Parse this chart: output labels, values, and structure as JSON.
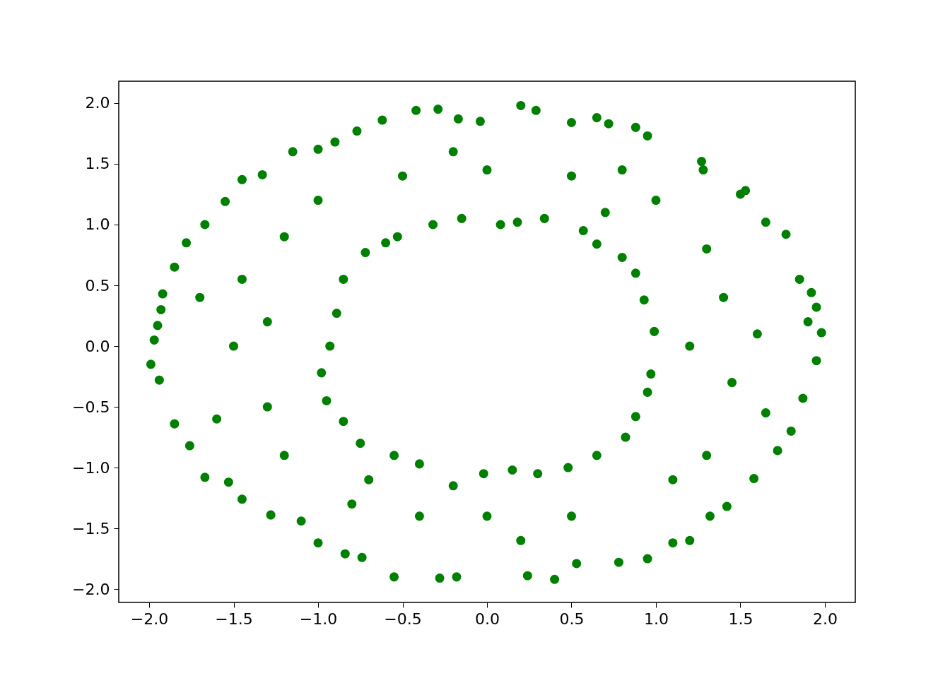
{
  "chart_data": {
    "type": "scatter",
    "x": [
      -1.99,
      -1.97,
      -1.95,
      -1.93,
      -1.92,
      -1.94,
      -1.85,
      -1.85,
      -1.78,
      -1.76,
      -1.67,
      -1.67,
      -1.55,
      -1.53,
      -1.45,
      -1.45,
      -1.33,
      -1.28,
      -1.15,
      -1.1,
      -1.0,
      -1.0,
      -0.9,
      -0.84,
      -0.77,
      -0.74,
      -0.62,
      -0.55,
      -0.42,
      -0.28,
      -0.29,
      -0.17,
      -0.18,
      -0.04,
      0.2,
      0.29,
      0.24,
      0.4,
      0.5,
      0.53,
      0.65,
      0.72,
      0.78,
      0.88,
      0.95,
      0.95,
      1.1,
      1.27,
      1.28,
      1.2,
      1.32,
      1.42,
      1.5,
      1.53,
      1.58,
      1.65,
      1.72,
      1.77,
      1.8,
      1.85,
      1.87,
      1.92,
      1.95,
      1.98,
      1.95,
      1.9,
      -0.98,
      -0.93,
      -0.89,
      -0.85,
      -0.72,
      -0.6,
      -0.53,
      -0.32,
      -0.15,
      0.08,
      0.18,
      0.34,
      0.57,
      0.65,
      0.8,
      0.88,
      0.93,
      0.99,
      0.97,
      0.95,
      0.88,
      0.82,
      0.65,
      0.48,
      0.3,
      0.15,
      -0.02,
      -0.2,
      -0.4,
      -0.55,
      -0.75,
      -0.85,
      -0.95,
      -1.5,
      -1.45,
      -1.3,
      -1.2,
      -1.0,
      -1.2,
      -0.5,
      -0.4,
      0.0,
      0.0,
      0.5,
      0.5,
      1.0,
      1.1,
      1.4,
      1.45,
      1.3,
      1.3,
      -1.6,
      -1.7,
      1.6,
      1.65,
      -0.8,
      0.8,
      -0.2,
      0.2,
      -1.3,
      1.2,
      0.7,
      -0.7
    ],
    "values": [
      -0.15,
      0.05,
      0.17,
      0.3,
      0.43,
      -0.28,
      0.65,
      -0.64,
      0.85,
      -0.82,
      1.0,
      -1.08,
      1.19,
      -1.12,
      1.37,
      -1.26,
      1.41,
      -1.39,
      1.6,
      -1.44,
      1.62,
      -1.62,
      1.68,
      -1.71,
      1.77,
      -1.74,
      1.86,
      -1.9,
      1.94,
      -1.91,
      1.95,
      1.87,
      -1.9,
      1.85,
      1.98,
      1.94,
      -1.89,
      -1.92,
      1.84,
      -1.79,
      1.88,
      1.83,
      -1.78,
      1.8,
      1.73,
      -1.75,
      -1.62,
      1.52,
      1.45,
      -1.6,
      -1.4,
      -1.32,
      1.25,
      1.28,
      -1.09,
      1.02,
      -0.86,
      0.92,
      -0.7,
      0.55,
      -0.43,
      0.44,
      0.32,
      0.11,
      -0.12,
      0.2,
      -0.22,
      0.0,
      0.27,
      0.55,
      0.77,
      0.85,
      0.9,
      1.0,
      1.05,
      1.0,
      1.02,
      1.05,
      0.95,
      0.84,
      0.73,
      0.6,
      0.38,
      0.12,
      -0.23,
      -0.38,
      -0.58,
      -0.75,
      -0.9,
      -1.0,
      -1.05,
      -1.02,
      -1.05,
      -1.15,
      -0.97,
      -0.9,
      -0.8,
      -0.62,
      -0.45,
      0.0,
      0.55,
      -0.5,
      0.9,
      1.2,
      -0.9,
      1.4,
      -1.4,
      1.45,
      -1.4,
      1.4,
      -1.4,
      1.2,
      -1.1,
      0.4,
      -0.3,
      0.8,
      -0.9,
      -0.6,
      0.4,
      0.1,
      -0.55,
      -1.3,
      1.45,
      1.6,
      -1.6,
      0.2,
      0.0,
      1.1,
      -1.1
    ],
    "color": "#008000",
    "marker": "circle",
    "xlim": [
      -2.18,
      2.18
    ],
    "ylim": [
      -2.11,
      2.18
    ],
    "xticks": [
      {
        "value": -2,
        "label": "−2.0"
      },
      {
        "value": -1.5,
        "label": "−1.5"
      },
      {
        "value": -1,
        "label": "−1.0"
      },
      {
        "value": -0.5,
        "label": "−0.5"
      },
      {
        "value": 0,
        "label": "0.0"
      },
      {
        "value": 0.5,
        "label": "0.5"
      },
      {
        "value": 1,
        "label": "1.0"
      },
      {
        "value": 1.5,
        "label": "1.5"
      },
      {
        "value": 2,
        "label": "2.0"
      }
    ],
    "yticks": [
      {
        "value": -2,
        "label": "−2.0"
      },
      {
        "value": -1.5,
        "label": "−1.5"
      },
      {
        "value": -1,
        "label": "−1.0"
      },
      {
        "value": -0.5,
        "label": "−0.5"
      },
      {
        "value": 0,
        "label": "0.0"
      },
      {
        "value": 0.5,
        "label": "0.5"
      },
      {
        "value": 1,
        "label": "1.0"
      },
      {
        "value": 1.5,
        "label": "1.5"
      },
      {
        "value": 2,
        "label": "2.0"
      }
    ]
  }
}
